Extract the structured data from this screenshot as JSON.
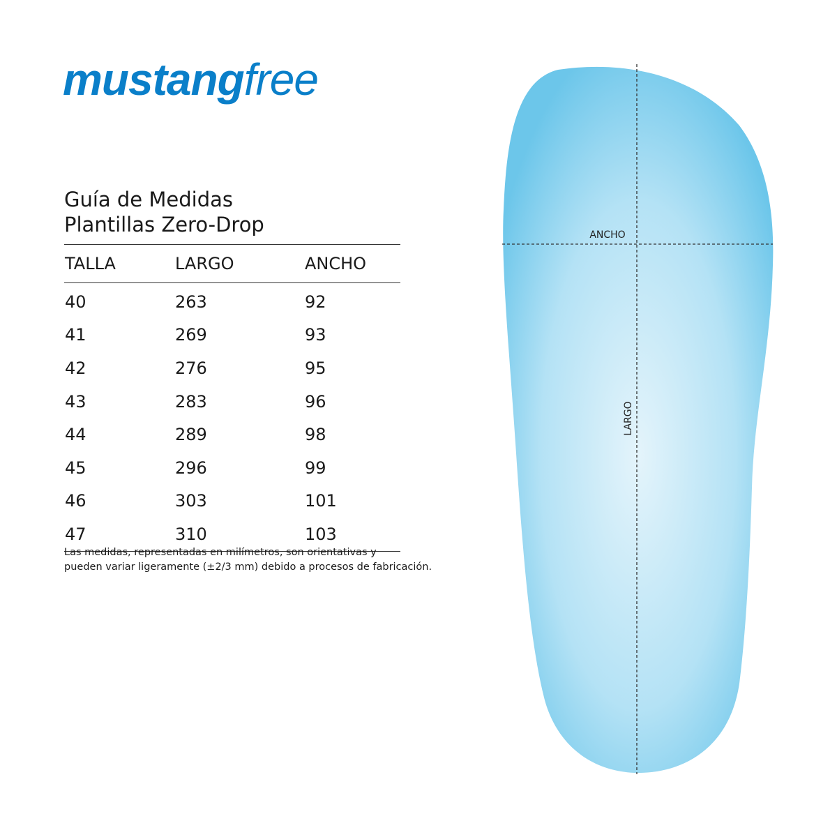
{
  "logo": {
    "bold": "mustang",
    "light": "free",
    "color": "#0a7fc9"
  },
  "title": {
    "line1": "Guía de Medidas",
    "line2": "Plantillas Zero-Drop"
  },
  "table": {
    "headers": [
      "TALLA",
      "LARGO",
      "ANCHO"
    ],
    "rows": [
      [
        "40",
        "263",
        "92"
      ],
      [
        "41",
        "269",
        "93"
      ],
      [
        "42",
        "276",
        "95"
      ],
      [
        "43",
        "283",
        "96"
      ],
      [
        "44",
        "289",
        "98"
      ],
      [
        "45",
        "296",
        "99"
      ],
      [
        "46",
        "303",
        "101"
      ],
      [
        "47",
        "310",
        "103"
      ]
    ]
  },
  "note": {
    "line1": "Las medidas, representadas en milímetros, son orientativas y",
    "line2": "pueden variar ligeramente (±2/3 mm) debido a procesos de fabricación."
  },
  "diagram": {
    "width_label": "ANCHO",
    "length_label": "LARGO",
    "insole_color": "#6cc6ea"
  }
}
